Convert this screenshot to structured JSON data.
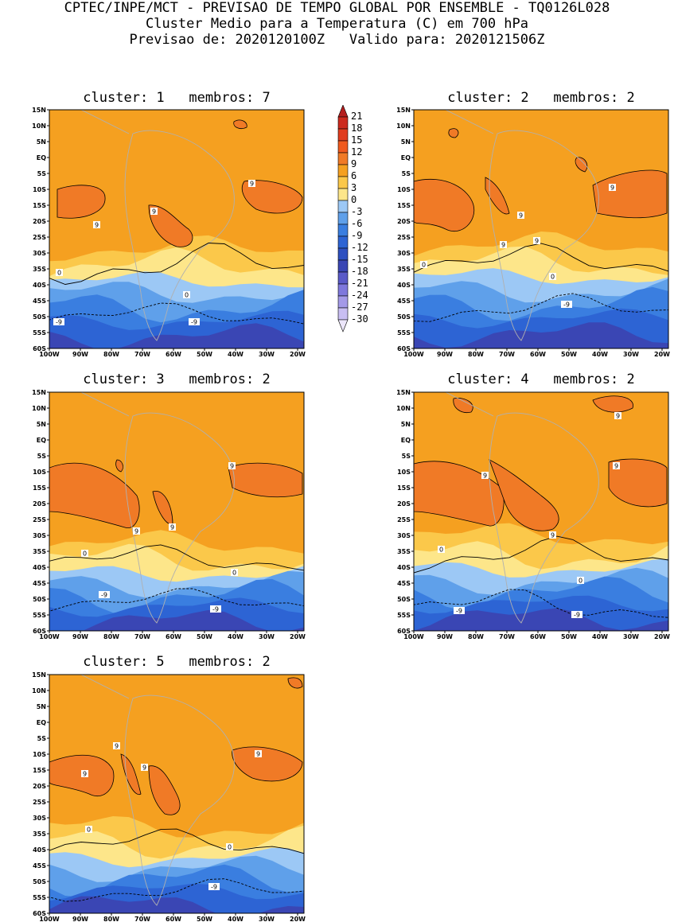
{
  "header": {
    "line1": "CPTEC/INPE/MCT - PREVISAO DE TEMPO GLOBAL POR ENSEMBLE - TQ0126L028",
    "line2": "Cluster Medio para a Temperatura (C) em 700 hPa",
    "line3": "Previsao de: 2020120100Z   Valido para: 2020121506Z"
  },
  "axes": {
    "lat_labels": [
      "15N",
      "10N",
      "5N",
      "EQ",
      "5S",
      "10S",
      "15S",
      "20S",
      "25S",
      "30S",
      "35S",
      "40S",
      "45S",
      "50S",
      "55S",
      "60S"
    ],
    "lon_labels": [
      "100W",
      "90W",
      "80W",
      "70W",
      "60W",
      "50W",
      "40W",
      "30W",
      "20W"
    ]
  },
  "colorbar": {
    "labels": [
      "21",
      "18",
      "15",
      "12",
      "9",
      "6",
      "3",
      "0",
      "-3",
      "-6",
      "-9",
      "-12",
      "-15",
      "-18",
      "-21",
      "-24",
      "-27",
      "-30"
    ],
    "colors": [
      "#b41e1e",
      "#cc2a1e",
      "#e03c1e",
      "#f05a1e",
      "#f07a26",
      "#f5a020",
      "#fbc84a",
      "#fde68a",
      "#9cc8f5",
      "#5fa0ea",
      "#3a7ee0",
      "#2d64d4",
      "#2d50c0",
      "#3a46b4",
      "#5a5ac8",
      "#7e78dc",
      "#a49ae8",
      "#c8bef2",
      "#ece6fa"
    ]
  },
  "panels": [
    {
      "title": "cluster: 1   membros: 7",
      "contour_labels": [
        "9",
        "9",
        "9",
        "0",
        "0",
        "-9",
        "-9"
      ]
    },
    {
      "title": "cluster: 2   membros: 2",
      "contour_labels": [
        "9",
        "9",
        "9",
        "9",
        "0",
        "0",
        "-9"
      ]
    },
    {
      "title": "cluster: 3   membros: 2",
      "contour_labels": [
        "9",
        "9",
        "9",
        "0",
        "0",
        "-9",
        "-9"
      ]
    },
    {
      "title": "cluster: 4   membros: 2",
      "contour_labels": [
        "9",
        "9",
        "9",
        "9",
        "0",
        "0",
        "-9",
        "-9"
      ]
    },
    {
      "title": "cluster: 5   membros: 2",
      "contour_labels": [
        "9",
        "9",
        "9",
        "9",
        "0",
        "0",
        "-9"
      ]
    }
  ]
}
